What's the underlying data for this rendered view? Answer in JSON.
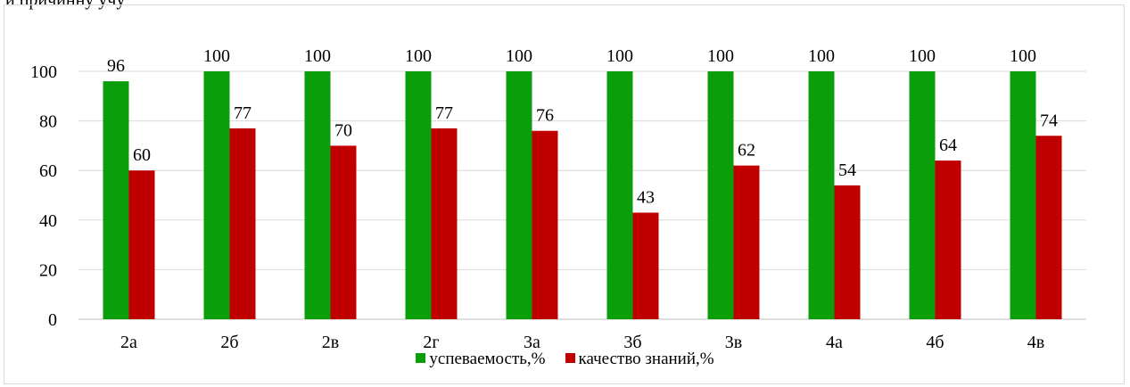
{
  "page": {
    "top_text": "и причинну учу"
  },
  "chart_data": {
    "type": "bar",
    "categories": [
      "2а",
      "2б",
      "2в",
      "2г",
      "3а",
      "3б",
      "3в",
      "4а",
      "4б",
      "4в"
    ],
    "series": [
      {
        "name": "успеваемость,%",
        "values": [
          96,
          100,
          100,
          100,
          100,
          100,
          100,
          100,
          100,
          100
        ],
        "color": "#0a9f0a"
      },
      {
        "name": "качество знаний,%",
        "values": [
          60,
          77,
          70,
          77,
          76,
          43,
          62,
          54,
          64,
          74
        ],
        "color": "#c00000"
      }
    ],
    "title": "",
    "xlabel": "",
    "ylabel": "",
    "ylim": [
      0,
      100
    ],
    "yticks": [
      0,
      20,
      40,
      60,
      80,
      100
    ],
    "grid": true,
    "legend_position": "bottom",
    "data_labels": true
  }
}
